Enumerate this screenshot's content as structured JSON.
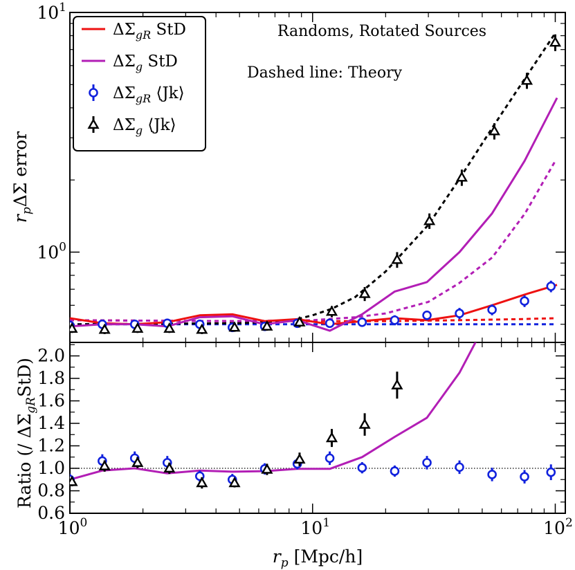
{
  "chart_data": [
    {
      "panel": "top",
      "type": "line",
      "xscale": "log",
      "yscale": "log",
      "xlim": [
        1,
        110
      ],
      "ylim": [
        0.42,
        10
      ],
      "ylabel": "r_p ΔΣ error",
      "xtick_labels": [],
      "ytick_labels": [
        {
          "value": 1,
          "base": "10",
          "exp": "0"
        },
        {
          "value": 10,
          "base": "10",
          "exp": "1"
        }
      ],
      "annotations": [
        "Randoms, Rotated Sources",
        "Dashed line: Theory"
      ],
      "legend_position": "upper-left",
      "legend": [
        {
          "base": "ΔΣ",
          "sub": "gR",
          "tail": " StD",
          "color": "#ee1111",
          "marker": "line"
        },
        {
          "base": "ΔΣ",
          "sub": "g",
          "tail": " StD",
          "color": "#b21eb5",
          "marker": "line"
        },
        {
          "base": "ΔΣ",
          "sub": "gR",
          "tail": " ⟨Jk⟩",
          "color": "#1122dd",
          "marker": "circle"
        },
        {
          "base": "ΔΣ",
          "sub": "g",
          "tail": " ⟨Jk⟩",
          "color": "#000000",
          "marker": "triangle"
        }
      ],
      "series": [
        {
          "name": "ΔΣgR StD",
          "style": "solid",
          "color": "#ee1111",
          "x": [
            1.0,
            1.36,
            1.85,
            2.52,
            3.43,
            4.67,
            6.35,
            8.65,
            11.77,
            16.0,
            21.8,
            29.6,
            40.3,
            54.9,
            74.7,
            101.7
          ],
          "y": [
            0.53,
            0.505,
            0.5,
            0.51,
            0.545,
            0.55,
            0.515,
            0.525,
            0.5,
            0.515,
            0.53,
            0.52,
            0.545,
            0.6,
            0.665,
            0.73
          ]
        },
        {
          "name": "ΔΣg StD",
          "style": "solid",
          "color": "#b21eb5",
          "x": [
            1.0,
            1.36,
            1.85,
            2.52,
            3.43,
            4.67,
            6.35,
            8.65,
            11.77,
            16.0,
            21.8,
            29.6,
            40.3,
            54.9,
            74.7,
            101.7
          ],
          "y": [
            0.49,
            0.5,
            0.5,
            0.49,
            0.535,
            0.54,
            0.5,
            0.52,
            0.47,
            0.55,
            0.685,
            0.75,
            1.0,
            1.45,
            2.4,
            4.4
          ]
        },
        {
          "name": "ΔΣgR Theory",
          "style": "dashed",
          "color": "#ee1111",
          "x": [
            1.0,
            5,
            10,
            20,
            40,
            70,
            100
          ],
          "y": [
            0.52,
            0.515,
            0.515,
            0.515,
            0.52,
            0.525,
            0.53
          ]
        },
        {
          "name": "ΔΣg Theory",
          "style": "dashed",
          "color": "#b21eb5",
          "x": [
            1.0,
            5,
            10,
            15,
            20,
            30,
            40,
            55,
            75,
            100
          ],
          "y": [
            0.52,
            0.515,
            0.52,
            0.535,
            0.555,
            0.62,
            0.74,
            0.95,
            1.45,
            2.4
          ]
        },
        {
          "name": "Theory (black)",
          "style": "dashed",
          "color": "#000000",
          "x": [
            1.0,
            5,
            8,
            10,
            12,
            15,
            20,
            30,
            40,
            55,
            75,
            100
          ],
          "y": [
            0.5,
            0.505,
            0.515,
            0.545,
            0.58,
            0.65,
            0.83,
            1.3,
            2.0,
            3.3,
            5.3,
            8.2
          ]
        },
        {
          "name": "ΔΣgR Theory (blue)",
          "style": "dashed",
          "color": "#1122dd",
          "x": [
            1.0,
            100
          ],
          "y": [
            0.5,
            0.5
          ]
        },
        {
          "name": "ΔΣgR ⟨Jk⟩",
          "style": "markers",
          "marker": "circle",
          "color": "#1122dd",
          "x": [
            1.0,
            1.36,
            1.85,
            2.52,
            3.43,
            4.67,
            6.35,
            8.65,
            11.77,
            16.0,
            21.8,
            29.6,
            40.3,
            54.9,
            74.7,
            96.0
          ],
          "y": [
            0.495,
            0.5,
            0.5,
            0.505,
            0.5,
            0.485,
            0.49,
            0.505,
            0.505,
            0.51,
            0.52,
            0.545,
            0.555,
            0.575,
            0.625,
            0.72
          ],
          "err": [
            0.02,
            0.02,
            0.02,
            0.02,
            0.02,
            0.02,
            0.02,
            0.02,
            0.02,
            0.02,
            0.025,
            0.025,
            0.03,
            0.03,
            0.035,
            0.04
          ]
        },
        {
          "name": "ΔΣg ⟨Jk⟩",
          "style": "markers",
          "marker": "triangle",
          "color": "#000000",
          "x": [
            1.02,
            1.39,
            1.9,
            2.57,
            3.5,
            4.77,
            6.49,
            8.84,
            12.0,
            16.4,
            22.3,
            30.3,
            41.2,
            56.1,
            76.4,
            100.0
          ],
          "y": [
            0.48,
            0.475,
            0.48,
            0.48,
            0.475,
            0.485,
            0.49,
            0.51,
            0.565,
            0.67,
            0.93,
            1.35,
            2.05,
            3.2,
            5.2,
            7.5
          ],
          "err": [
            0.02,
            0.02,
            0.02,
            0.02,
            0.02,
            0.02,
            0.02,
            0.025,
            0.03,
            0.045,
            0.07,
            0.1,
            0.16,
            0.25,
            0.4,
            0.6
          ]
        }
      ]
    },
    {
      "panel": "bottom",
      "type": "line",
      "xscale": "log",
      "yscale": "linear",
      "xlim": [
        1,
        110
      ],
      "ylim": [
        0.6,
        2.12
      ],
      "xlabel_base": "r",
      "xlabel_sub": "p",
      "xlabel_tail": " [Mpc/h]",
      "ylabel_pre": "Ratio (/ ΔΣ",
      "ylabel_sub": "gR",
      "ylabel_post": "StD)",
      "xtick_labels": [
        {
          "value": 1,
          "base": "10",
          "exp": "0"
        },
        {
          "value": 10,
          "base": "10",
          "exp": "1"
        },
        {
          "value": 100,
          "base": "10",
          "exp": "2"
        }
      ],
      "ytick_labels": [
        "0.6",
        "0.8",
        "1.0",
        "1.2",
        "1.4",
        "1.6",
        "1.8",
        "2.0"
      ],
      "ytick_values": [
        0.6,
        0.8,
        1.0,
        1.2,
        1.4,
        1.6,
        1.8,
        2.0
      ],
      "reference_line": 1.0,
      "series": [
        {
          "name": "ΔΣg StD / ΔΣgR StD",
          "style": "solid",
          "color": "#b21eb5",
          "x": [
            1.0,
            1.36,
            1.85,
            2.52,
            3.43,
            4.67,
            6.35,
            8.65,
            11.77,
            16.0,
            21.8,
            29.6,
            40.3,
            54.9
          ],
          "y": [
            0.9,
            0.98,
            1.0,
            0.955,
            0.98,
            0.97,
            0.975,
            0.995,
            0.995,
            1.1,
            1.28,
            1.45,
            1.85,
            2.4
          ]
        },
        {
          "name": "ΔΣgR ⟨Jk⟩ ratio",
          "style": "markers",
          "marker": "circle",
          "color": "#1122dd",
          "x": [
            1.0,
            1.36,
            1.85,
            2.52,
            3.43,
            4.67,
            6.35,
            8.65,
            11.77,
            16.0,
            21.8,
            29.6,
            40.3,
            54.9,
            74.7,
            96.0
          ],
          "y": [
            0.9,
            1.065,
            1.09,
            1.05,
            0.93,
            0.9,
            0.995,
            1.04,
            1.09,
            1.005,
            0.975,
            1.05,
            1.01,
            0.945,
            0.925,
            0.965
          ],
          "err": [
            0.05,
            0.06,
            0.06,
            0.06,
            0.05,
            0.05,
            0.05,
            0.05,
            0.06,
            0.05,
            0.05,
            0.06,
            0.06,
            0.06,
            0.06,
            0.07
          ]
        },
        {
          "name": "ΔΣg ⟨Jk⟩ ratio",
          "style": "markers",
          "marker": "triangle",
          "color": "#000000",
          "x": [
            1.02,
            1.39,
            1.9,
            2.57,
            3.5,
            4.77,
            6.49,
            8.84,
            12.0,
            16.4,
            22.3
          ],
          "y": [
            0.88,
            1.02,
            1.05,
            1.0,
            0.87,
            0.87,
            0.99,
            1.08,
            1.27,
            1.39,
            1.74
          ],
          "err": [
            0.04,
            0.05,
            0.05,
            0.05,
            0.05,
            0.04,
            0.05,
            0.06,
            0.08,
            0.1,
            0.12
          ]
        }
      ]
    }
  ]
}
